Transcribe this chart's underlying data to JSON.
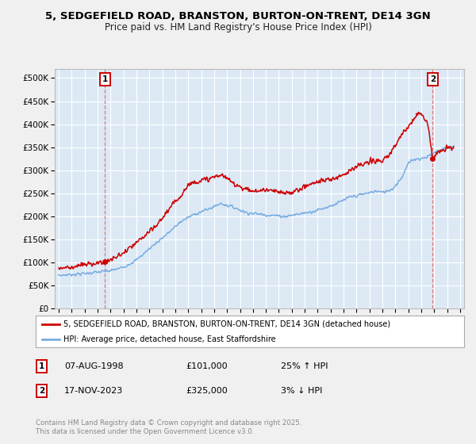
{
  "title1": "5, SEDGEFIELD ROAD, BRANSTON, BURTON-ON-TRENT, DE14 3GN",
  "title2": "Price paid vs. HM Land Registry's House Price Index (HPI)",
  "bg_color": "#f0f0f0",
  "plot_bg_color": "#dce9f5",
  "grid_color": "#ffffff",
  "red_color": "#cc0000",
  "blue_color": "#7aade0",
  "dashed_color": "#e06060",
  "ylim": [
    0,
    520000
  ],
  "yticks": [
    0,
    50000,
    100000,
    150000,
    200000,
    250000,
    300000,
    350000,
    400000,
    450000,
    500000
  ],
  "ytick_labels": [
    "£0",
    "£50K",
    "£100K",
    "£150K",
    "£200K",
    "£250K",
    "£300K",
    "£350K",
    "£400K",
    "£450K",
    "£500K"
  ],
  "xlim_start": 1994.7,
  "xlim_end": 2026.3,
  "xticks": [
    1995,
    1996,
    1997,
    1998,
    1999,
    2000,
    2001,
    2002,
    2003,
    2004,
    2005,
    2006,
    2007,
    2008,
    2009,
    2010,
    2011,
    2012,
    2013,
    2014,
    2015,
    2016,
    2017,
    2018,
    2019,
    2020,
    2021,
    2022,
    2023,
    2024,
    2025,
    2026
  ],
  "legend_line1": "5, SEDGEFIELD ROAD, BRANSTON, BURTON-ON-TRENT, DE14 3GN (detached house)",
  "legend_line2": "HPI: Average price, detached house, East Staffordshire",
  "sale1_date": 1998.58,
  "sale1_price": 101000,
  "sale2_date": 2023.88,
  "sale2_price": 325000,
  "copyright": "Contains HM Land Registry data © Crown copyright and database right 2025.\nThis data is licensed under the Open Government Licence v3.0."
}
